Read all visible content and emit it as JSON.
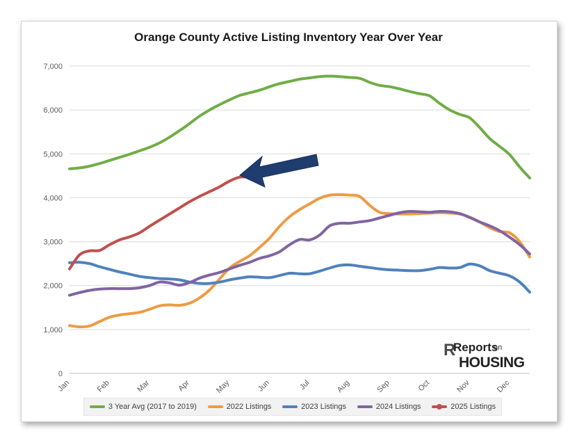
{
  "chart_data": {
    "type": "line",
    "title": "Orange County Active Listing Inventory Year Over Year",
    "xlabel": "",
    "ylabel": "",
    "ylim": [
      0,
      7000
    ],
    "yticks": [
      "0",
      "1,000",
      "2,000",
      "3,000",
      "4,000",
      "5,000",
      "6,000",
      "7,000"
    ],
    "categories": [
      "Jan",
      "Feb",
      "Mar",
      "Apr",
      "May",
      "Jun",
      "Jul",
      "Aug",
      "Sep",
      "Oct",
      "Nov",
      "Dec"
    ],
    "grid": true,
    "legend_position": "bottom",
    "series": [
      {
        "name": "3 Year Avg (2017 to 2019)",
        "color": "#70ad47",
        "x": [
          0,
          0.25,
          0.5,
          0.75,
          1,
          1.25,
          1.5,
          1.75,
          2,
          2.25,
          2.5,
          2.75,
          3,
          3.25,
          3.5,
          3.75,
          4,
          4.25,
          4.5,
          4.75,
          5,
          5.25,
          5.5,
          5.75,
          6,
          6.25,
          6.5,
          6.75,
          7,
          7.25,
          7.5,
          7.75,
          8,
          8.25,
          8.5,
          8.75,
          9,
          9.25,
          9.5,
          9.75,
          10,
          10.25,
          10.5,
          10.75,
          11,
          11.25,
          11.5
        ],
        "values": [
          4660,
          4680,
          4720,
          4780,
          4850,
          4920,
          4990,
          5070,
          5150,
          5250,
          5380,
          5530,
          5690,
          5860,
          6000,
          6120,
          6230,
          6330,
          6390,
          6450,
          6530,
          6600,
          6650,
          6700,
          6730,
          6760,
          6770,
          6760,
          6740,
          6720,
          6630,
          6560,
          6530,
          6480,
          6420,
          6370,
          6320,
          6150,
          6000,
          5900,
          5820,
          5600,
          5350,
          5170,
          4980,
          4700,
          4450
        ]
      },
      {
        "name": "2022 Listings",
        "color": "#ed9b44",
        "x": [
          0,
          0.25,
          0.5,
          0.75,
          1,
          1.25,
          1.5,
          1.75,
          2,
          2.25,
          2.5,
          2.75,
          3,
          3.25,
          3.5,
          3.75,
          4,
          4.25,
          4.5,
          4.75,
          5,
          5.25,
          5.5,
          5.75,
          6,
          6.25,
          6.5,
          6.75,
          7,
          7.25,
          7.5,
          7.75,
          8,
          8.25,
          8.5,
          8.75,
          9,
          9.25,
          9.5,
          9.75,
          10,
          10.25,
          10.5,
          10.75,
          11,
          11.25,
          11.5
        ],
        "values": [
          1090,
          1060,
          1080,
          1180,
          1280,
          1330,
          1360,
          1390,
          1460,
          1540,
          1560,
          1550,
          1600,
          1720,
          1900,
          2150,
          2400,
          2550,
          2680,
          2870,
          3080,
          3350,
          3570,
          3730,
          3860,
          3990,
          4060,
          4070,
          4060,
          4030,
          3830,
          3670,
          3640,
          3630,
          3630,
          3640,
          3650,
          3660,
          3650,
          3630,
          3560,
          3450,
          3320,
          3230,
          3200,
          3000,
          2650
        ]
      },
      {
        "name": "2023 Listings",
        "color": "#4f81bd",
        "x": [
          0,
          0.25,
          0.5,
          0.75,
          1,
          1.25,
          1.5,
          1.75,
          2,
          2.25,
          2.5,
          2.75,
          3,
          3.25,
          3.5,
          3.75,
          4,
          4.25,
          4.5,
          4.75,
          5,
          5.25,
          5.5,
          5.75,
          6,
          6.25,
          6.5,
          6.75,
          7,
          7.25,
          7.5,
          7.75,
          8,
          8.25,
          8.5,
          8.75,
          9,
          9.25,
          9.5,
          9.75,
          10,
          10.25,
          10.5,
          10.75,
          11,
          11.25,
          11.5
        ],
        "values": [
          2520,
          2530,
          2500,
          2430,
          2370,
          2310,
          2260,
          2210,
          2180,
          2160,
          2150,
          2130,
          2080,
          2050,
          2050,
          2080,
          2130,
          2170,
          2200,
          2190,
          2180,
          2230,
          2280,
          2270,
          2270,
          2330,
          2400,
          2460,
          2470,
          2440,
          2410,
          2380,
          2360,
          2350,
          2340,
          2340,
          2370,
          2410,
          2400,
          2410,
          2490,
          2450,
          2340,
          2280,
          2220,
          2080,
          1850
        ]
      },
      {
        "name": "2024 Listings",
        "color": "#8064a2",
        "x": [
          0,
          0.25,
          0.5,
          0.75,
          1,
          1.25,
          1.5,
          1.75,
          2,
          2.25,
          2.5,
          2.75,
          3,
          3.25,
          3.5,
          3.75,
          4,
          4.25,
          4.5,
          4.75,
          5,
          5.25,
          5.5,
          5.75,
          6,
          6.25,
          6.5,
          6.75,
          7,
          7.25,
          7.5,
          7.75,
          8,
          8.25,
          8.5,
          8.75,
          9,
          9.25,
          9.5,
          9.75,
          10,
          10.25,
          10.5,
          10.75,
          11,
          11.25,
          11.5
        ],
        "values": [
          1780,
          1840,
          1890,
          1920,
          1930,
          1930,
          1930,
          1950,
          2000,
          2080,
          2060,
          2010,
          2070,
          2170,
          2240,
          2300,
          2380,
          2460,
          2530,
          2620,
          2680,
          2770,
          2930,
          3050,
          3040,
          3150,
          3360,
          3420,
          3420,
          3450,
          3480,
          3540,
          3600,
          3660,
          3690,
          3680,
          3670,
          3690,
          3680,
          3640,
          3550,
          3450,
          3360,
          3250,
          3100,
          2930,
          2720
        ]
      },
      {
        "name": "2025 Listings",
        "color": "#c0504d",
        "x": [
          0,
          0.25,
          0.5,
          0.75,
          1,
          1.25,
          1.5,
          1.75,
          2,
          2.25,
          2.5,
          2.75,
          3,
          3.25,
          3.5,
          3.75,
          4,
          4.25,
          4.5
        ],
        "values": [
          2380,
          2700,
          2790,
          2800,
          2930,
          3040,
          3110,
          3200,
          3350,
          3490,
          3630,
          3770,
          3910,
          4030,
          4140,
          4250,
          4380,
          4470,
          4470
        ],
        "last_marker": true
      }
    ]
  },
  "logo": {
    "top": "Reports",
    "small": "on",
    "big": "HOUSING",
    "initial": "R"
  }
}
